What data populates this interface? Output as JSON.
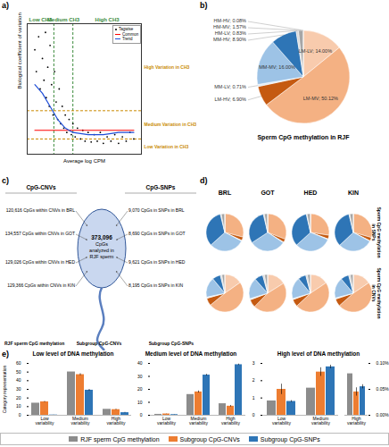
{
  "panel_letters": [
    "a)",
    "b)",
    "c)",
    "d)",
    "e)"
  ],
  "chart_data": [
    {
      "type": "scatter",
      "xlabel": "Average log CPM",
      "ylabel": "Biological coefficient of variation",
      "xlim": [
        -2,
        13
      ],
      "ylim": [
        0,
        3
      ],
      "tick_labels": false,
      "legend": "top-right",
      "series": [
        {
          "name": "Tagwise",
          "type": "scatter",
          "marker": "dot",
          "color": "#000000",
          "x": [
            -1,
            -0.8,
            -0.5,
            -0.3,
            0,
            0.2,
            0.4,
            0.5,
            0.7,
            0.9,
            1.0,
            1.2,
            1.4,
            1.6,
            1.8,
            2.0,
            2.2,
            2.4,
            2.6,
            2.8,
            3.0,
            3.2,
            3.5,
            3.8,
            4.0,
            4.3,
            4.6,
            5,
            5.3,
            5.6,
            6,
            6.4,
            6.8,
            7.2,
            7.6,
            8,
            8.5,
            9,
            9.5,
            10,
            10.5,
            11,
            11.5,
            12
          ],
          "values": [
            2.4,
            1.9,
            2.7,
            1.5,
            2.2,
            1.7,
            2.8,
            1.3,
            2.0,
            1.1,
            2.5,
            1.6,
            0.9,
            1.9,
            1.2,
            0.8,
            1.5,
            0.7,
            1.1,
            0.6,
            0.9,
            0.5,
            0.8,
            0.45,
            0.7,
            0.4,
            0.6,
            0.35,
            0.55,
            0.3,
            0.5,
            0.28,
            0.45,
            0.3,
            0.5,
            0.25,
            0.4,
            0.3,
            0.45,
            0.25,
            0.4,
            0.3,
            0.5,
            0.35
          ]
        },
        {
          "name": "Common",
          "type": "line",
          "color": "#ff0000",
          "x": [
            -1,
            12
          ],
          "values": [
            0.55,
            0.55
          ]
        },
        {
          "name": "Trend",
          "type": "line",
          "color": "#1f4ed8",
          "x": [
            -1,
            0,
            1,
            2,
            3,
            4,
            6,
            8,
            10,
            12
          ],
          "values": [
            1.6,
            1.4,
            1.1,
            0.8,
            0.6,
            0.5,
            0.45,
            0.45,
            0.5,
            0.5
          ]
        }
      ],
      "x_thresholds": {
        "values": [
          1.5,
          4
        ],
        "color": "#3a8a3a",
        "labels": [
          "Low CH3",
          "Medium CH3",
          "High CH3"
        ]
      },
      "y_thresholds": {
        "values": [
          0.35,
          1.0
        ],
        "color": "#c98a00",
        "labels": [
          "Low Variation in CH3",
          "Medium Variation in CH3",
          "High Variation in CH3"
        ]
      }
    },
    {
      "type": "pie",
      "title": "Sperm CpG methylation in RJF",
      "categories": [
        "LM-LV",
        "LM-MV",
        "LM-HV",
        "MM-LV",
        "MM-MV",
        "MM-HV",
        "HM-LV",
        "HM-MV",
        "HM-HV"
      ],
      "values": [
        14.0,
        50.12,
        6.9,
        0.71,
        16.0,
        8.9,
        0.83,
        1.57,
        0.08
      ],
      "value_labels": [
        "LM-LV; 14.00%",
        "LM-MV; 50.12%",
        "LM-HV; 6.90%",
        "MM-LV; 0.71%",
        "MM-MV; 16.00%",
        "MM-HV; 8.90%",
        "HM-LV; 0.83%",
        "HM-MV; 1.57%",
        "HM-HV; 0.08%"
      ],
      "colors": [
        "#f8cbad",
        "#f4b183",
        "#c55a11",
        "#deebf7",
        "#9dc3e6",
        "#2e75b6",
        "#d9d9d9",
        "#a6a6a6",
        "#595959"
      ],
      "data_labels": true
    },
    {
      "type": "pie",
      "columns": [
        "BRL",
        "GOT",
        "HED",
        "KIN"
      ],
      "categories": [
        "LM-LV",
        "LM-MV",
        "LM-HV",
        "MM-LV",
        "MM-MV",
        "MM-HV",
        "HM-LV",
        "HM-MV",
        "HM-HV"
      ],
      "colors": [
        "#f8cbad",
        "#f4b183",
        "#c55a11",
        "#deebf7",
        "#9dc3e6",
        "#2e75b6",
        "#d9d9d9",
        "#a6a6a6",
        "#595959"
      ],
      "rows": [
        {
          "label_lines": [
            "Sperm CpG methylation",
            "in SNPs"
          ],
          "values": [
            [
              0.3,
              28,
              3,
              0.5,
              30,
              32,
              0.8,
              2.9,
              0.06
            ],
            [
              0.4,
              30,
              2.8,
              0.6,
              31,
              30,
              0.9,
              2.7,
              0.05
            ],
            [
              0.3,
              27,
              3.2,
              0.5,
              32,
              33,
              0.7,
              2.8,
              0.06
            ],
            [
              0.2,
              29,
              3,
              0.4,
              30,
              33,
              0.8,
              2.9,
              0.05
            ]
          ]
        },
        {
          "label_lines": [
            "Sperm CpG methylation",
            "in CNVs"
          ],
          "values": [
            [
              15,
              48,
              6.5,
              1,
              17,
              7,
              1.4,
              2.4,
              0.05
            ],
            [
              16,
              46,
              6.8,
              1.1,
              18,
              7.2,
              1.6,
              2.6,
              0.04
            ],
            [
              15.5,
              47,
              6.3,
              0.9,
              18.5,
              6.8,
              1.5,
              2.5,
              0.05
            ],
            [
              15.4,
              47.5,
              6.4,
              1,
              17.8,
              7,
              1.5,
              2.5,
              0.04
            ]
          ]
        }
      ]
    },
    {
      "type": "bar",
      "title": "Low level of DNA methylation",
      "ylabel": "Category representation",
      "legend": "bottom",
      "categories": [
        "Low variability",
        "Medium variability",
        "High variability"
      ],
      "ylim": [
        0,
        60
      ],
      "yticks": [
        0,
        10,
        20,
        30,
        40,
        50,
        60
      ],
      "series": [
        {
          "name": "RJF sperm CpG methylation",
          "color": "#8c8c8c",
          "values": [
            14.0,
            50.12,
            6.9
          ]
        },
        {
          "name": "Subgroup CpG-CNVs",
          "color": "#ed7d31",
          "values": [
            15.5,
            47,
            6.5
          ],
          "errors": [
            0.6,
            1.2,
            0.5
          ]
        },
        {
          "name": "Subgroup CpG-SNPs",
          "color": "#2e75b6",
          "values": [
            0.3,
            29,
            3
          ],
          "errors": [
            0.1,
            1.0,
            0.4
          ]
        }
      ]
    },
    {
      "type": "bar",
      "title": "Medium level of DNA methylation",
      "categories": [
        "Low variability",
        "Medium variability",
        "High variability"
      ],
      "ylim": [
        0,
        40
      ],
      "yticks": [
        0,
        10,
        20,
        30,
        40
      ],
      "series": [
        {
          "name": "RJF sperm CpG methylation",
          "color": "#8c8c8c",
          "values": [
            0.71,
            16.0,
            8.9
          ]
        },
        {
          "name": "Subgroup CpG-CNVs",
          "color": "#ed7d31",
          "values": [
            1,
            18,
            7
          ],
          "errors": [
            0.1,
            0.8,
            0.6
          ]
        },
        {
          "name": "Subgroup CpG-SNPs",
          "color": "#2e75b6",
          "values": [
            0.5,
            31,
            39
          ],
          "errors": [
            0.1,
            0.6,
            0.5
          ]
        }
      ]
    },
    {
      "type": "bar",
      "title": "High level of DNA methylation",
      "categories": [
        "Low variability",
        "Medium variability"
      ],
      "ylim": [
        0,
        3
      ],
      "yticks": [
        0,
        1,
        2,
        3
      ],
      "series": [
        {
          "name": "RJF sperm CpG methylation",
          "color": "#8c8c8c",
          "values": [
            0.83,
            1.57
          ]
        },
        {
          "name": "Subgroup CpG-CNVs",
          "color": "#ed7d31",
          "values": [
            1.5,
            2.5
          ],
          "errors": [
            0.3,
            0.25
          ]
        },
        {
          "name": "Subgroup CpG-SNPs",
          "color": "#2e75b6",
          "values": [
            0.8,
            2.8
          ],
          "errors": [
            0.05,
            0.1
          ]
        }
      ]
    },
    {
      "type": "bar",
      "categories": [
        "High variability"
      ],
      "ylim": [
        0,
        0.1
      ],
      "yticks": [
        {
          "value": 0,
          "label": "0.00%"
        },
        {
          "value": 0.05,
          "label": "0.05%"
        },
        {
          "value": 0.1,
          "label": "0.10%"
        }
      ],
      "series": [
        {
          "name": "RJF sperm CpG methylation",
          "color": "#8c8c8c",
          "values": [
            0.08
          ]
        },
        {
          "name": "Subgroup CpG-CNVs",
          "color": "#ed7d31",
          "values": [
            0.045
          ],
          "errors": [
            0.008
          ]
        },
        {
          "name": "Subgroup CpG-SNPs",
          "color": "#2e75b6",
          "values": [
            0.055
          ],
          "errors": [
            0.004
          ]
        }
      ]
    }
  ],
  "diagram": {
    "headers": [
      "CpG-CNVs",
      "CpG-SNPs"
    ],
    "center_lines": [
      "373,096",
      "CpGs",
      "analyzed in",
      "RJF sperm"
    ],
    "left_labels": [
      "120,616 CpGs within CNVs in BRL",
      "134,557 CpGs within CNVs in GOT",
      "129,026 CpGs within CNVs in HED",
      "129,366 CpGs within CNVs in KIN"
    ],
    "right_labels": [
      "9,070 CpGs in SNPs in BRL",
      "8,690 CpGs in SNPs in GOT",
      "9,621 CpGs in SNPs in HED",
      "8,195 CpGs in SNPs in KIN"
    ],
    "bottom_labels": [
      "RJF sperm CpG methylation",
      "Subgroup CpG-CNVs",
      "Subgroup CpG-SNPs"
    ]
  }
}
